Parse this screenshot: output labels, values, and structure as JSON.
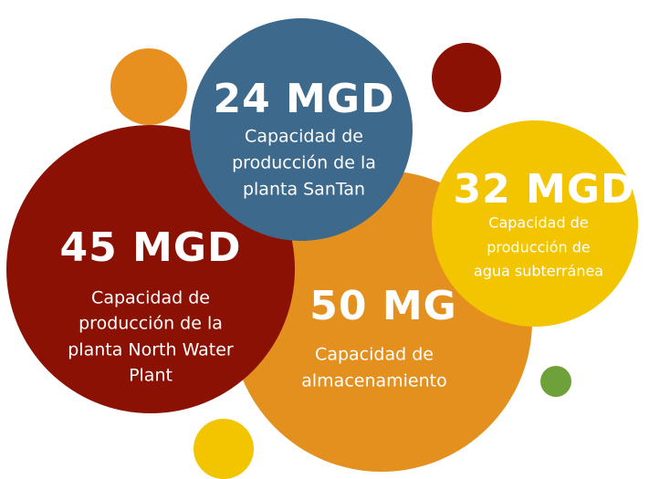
{
  "bubbles": [
    {
      "value": "24 MGD",
      "description": [
        "Capacidad de",
        "producción de la",
        "planta SanTan"
      ]
    },
    {
      "value": "45 MGD",
      "description": [
        "Capacidad de",
        "producción de la",
        "planta North Water",
        "Plant"
      ]
    },
    {
      "value": "50 MG",
      "description": [
        "Capacidad de",
        "almacenamiento"
      ]
    },
    {
      "value": "32 MGD",
      "description": [
        "Capacidad de",
        "producción de",
        "agua subterránea"
      ]
    }
  ]
}
